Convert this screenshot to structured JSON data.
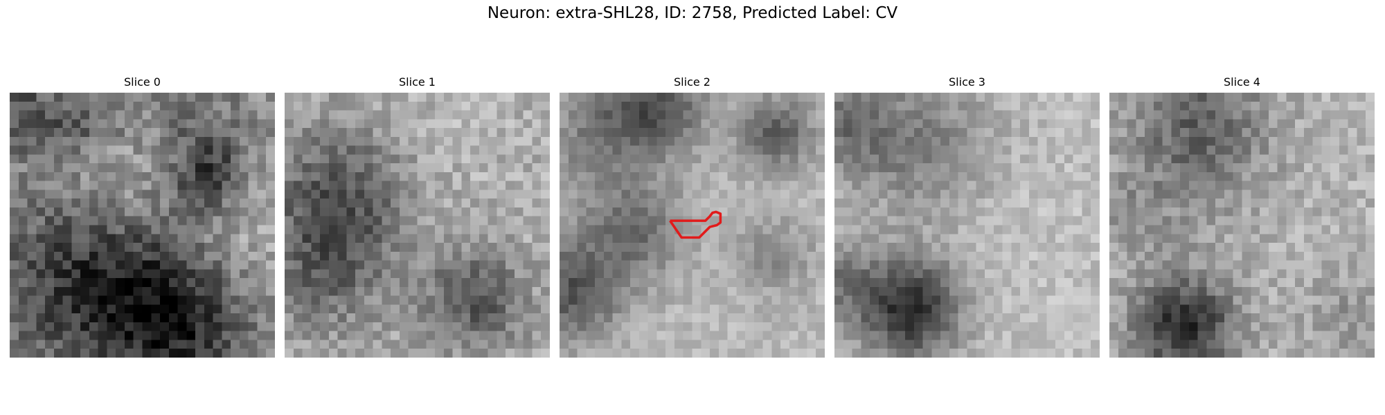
{
  "figure": {
    "title": "Neuron: extra-SHL28, ID: 2758, Predicted Label: CV"
  },
  "panels": [
    {
      "title": "Slice 0"
    },
    {
      "title": "Slice 1"
    },
    {
      "title": "Slice 2",
      "has_outline": true,
      "outline_color": "#e11b1b"
    },
    {
      "title": "Slice 3"
    },
    {
      "title": "Slice 4"
    }
  ]
}
